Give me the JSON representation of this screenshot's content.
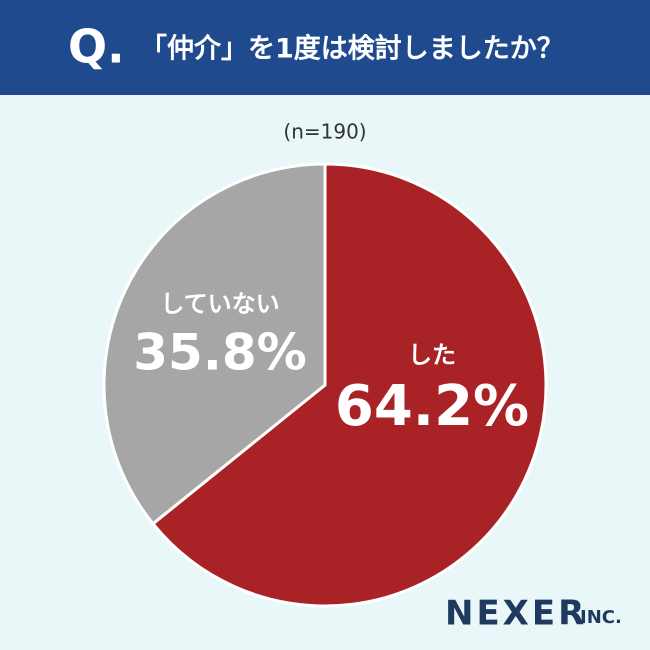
{
  "chart_data": {
    "type": "pie",
    "question_mark": "Q.",
    "title": "「仲介」を1度は検討しましたか？",
    "subtitle": "(n=190)",
    "categories": [
      "した",
      "していない"
    ],
    "values": [
      64.2,
      35.8
    ],
    "value_labels": [
      "64.2%",
      "35.8%"
    ],
    "colors": [
      "#a82226",
      "#a6a6a6"
    ],
    "logo": "NEXER",
    "logo_suffix": "INC."
  }
}
